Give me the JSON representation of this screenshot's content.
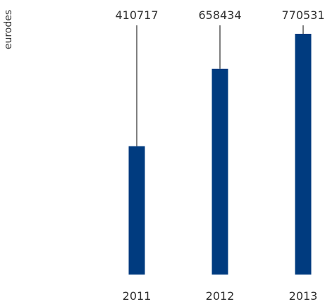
{
  "chart_data": {
    "type": "bar",
    "categories": [
      "2011",
      "2012",
      "2013"
    ],
    "values": [
      410717,
      658434,
      770531
    ],
    "value_labels": [
      "410717",
      "658434",
      "770531"
    ],
    "title": "",
    "xlabel": "",
    "ylabel": "eurodes",
    "ylim": [
      0,
      770531
    ],
    "grid": false,
    "legend": "none",
    "bar_color": "#003b7f",
    "leader_line_color": "#000000"
  }
}
